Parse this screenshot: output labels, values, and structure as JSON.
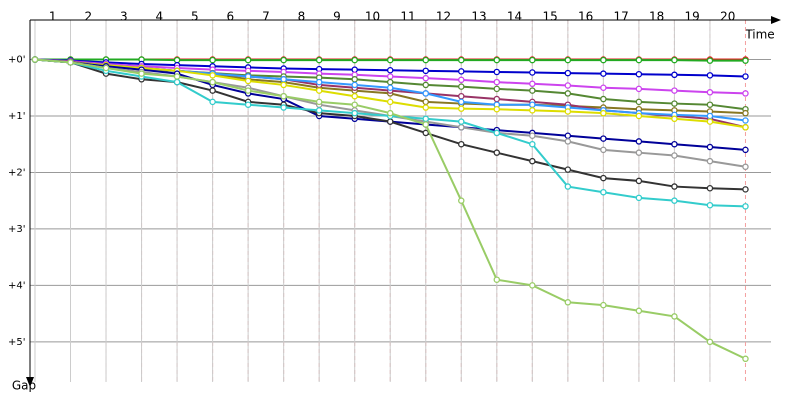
{
  "chart_data": {
    "type": "line",
    "x_label": "Time",
    "y_label": "Gap",
    "x": [
      0,
      1,
      2,
      3,
      4,
      5,
      6,
      7,
      8,
      9,
      10,
      11,
      12,
      13,
      14,
      15,
      16,
      17,
      18,
      19,
      20
    ],
    "xlim": [
      -0.14,
      21
    ],
    "ylim": [
      -0.7,
      5.8
    ],
    "xticks": [
      {
        "value": 0.5,
        "label": "1"
      },
      {
        "value": 1.5,
        "label": "2"
      },
      {
        "value": 2.5,
        "label": "3"
      },
      {
        "value": 3.5,
        "label": "4"
      },
      {
        "value": 4.5,
        "label": "5"
      },
      {
        "value": 5.5,
        "label": "6"
      },
      {
        "value": 6.5,
        "label": "7"
      },
      {
        "value": 7.5,
        "label": "8"
      },
      {
        "value": 8.5,
        "label": "9"
      },
      {
        "value": 9.5,
        "label": "10"
      },
      {
        "value": 10.5,
        "label": "11"
      },
      {
        "value": 11.5,
        "label": "12"
      },
      {
        "value": 12.5,
        "label": "13"
      },
      {
        "value": 13.5,
        "label": "14"
      },
      {
        "value": 14.5,
        "label": "15"
      },
      {
        "value": 15.5,
        "label": "16"
      },
      {
        "value": 16.5,
        "label": "17"
      },
      {
        "value": 17.5,
        "label": "18"
      },
      {
        "value": 18.5,
        "label": "19"
      },
      {
        "value": 19.5,
        "label": "20"
      }
    ],
    "yticks": [
      {
        "value": 0,
        "label": "+0'"
      },
      {
        "value": 1,
        "label": "+1'"
      },
      {
        "value": 2,
        "label": "+2'"
      },
      {
        "value": 3,
        "label": "+3'"
      },
      {
        "value": 4,
        "label": "+4'"
      },
      {
        "value": 5,
        "label": "+5'"
      }
    ],
    "grid": true,
    "series": [
      {
        "color": "#e02020",
        "values": [
          0,
          0,
          0,
          0,
          0,
          0,
          0,
          0,
          0,
          0,
          0,
          0,
          0,
          0,
          0,
          0,
          0,
          0,
          0,
          0,
          0
        ]
      },
      {
        "color": "#22aa22",
        "values": [
          0,
          0,
          0,
          0,
          0.01,
          0.01,
          0.01,
          0.01,
          0.01,
          0.01,
          0.01,
          0.01,
          0.01,
          0.01,
          0.01,
          0.01,
          0.01,
          0.01,
          0.01,
          0.02,
          0.02
        ]
      },
      {
        "color": "#0000cc",
        "values": [
          0,
          0.02,
          0.05,
          0.08,
          0.1,
          0.12,
          0.14,
          0.16,
          0.17,
          0.18,
          0.19,
          0.2,
          0.21,
          0.22,
          0.23,
          0.24,
          0.25,
          0.26,
          0.27,
          0.28,
          0.3
        ]
      },
      {
        "color": "#cc44ee",
        "values": [
          0,
          0.03,
          0.08,
          0.12,
          0.15,
          0.18,
          0.2,
          0.22,
          0.25,
          0.27,
          0.3,
          0.33,
          0.36,
          0.4,
          0.43,
          0.46,
          0.5,
          0.52,
          0.55,
          0.58,
          0.6
        ]
      },
      {
        "color": "#558833",
        "values": [
          0,
          0.05,
          0.12,
          0.18,
          0.2,
          0.24,
          0.28,
          0.3,
          0.32,
          0.35,
          0.4,
          0.45,
          0.48,
          0.52,
          0.55,
          0.6,
          0.7,
          0.75,
          0.78,
          0.8,
          0.88
        ]
      },
      {
        "color": "#887722",
        "values": [
          0,
          0.05,
          0.1,
          0.15,
          0.2,
          0.25,
          0.35,
          0.4,
          0.5,
          0.55,
          0.6,
          0.75,
          0.78,
          0.8,
          0.8,
          0.82,
          0.85,
          0.88,
          0.9,
          0.92,
          0.95
        ]
      },
      {
        "color": "#993366",
        "values": [
          0,
          0.04,
          0.1,
          0.15,
          0.2,
          0.25,
          0.3,
          0.35,
          0.45,
          0.5,
          0.55,
          0.6,
          0.65,
          0.7,
          0.75,
          0.8,
          0.9,
          0.95,
          1.0,
          1.05,
          1.2
        ]
      },
      {
        "color": "#3399ff",
        "values": [
          0,
          0.05,
          0.1,
          0.15,
          0.2,
          0.25,
          0.3,
          0.35,
          0.4,
          0.45,
          0.5,
          0.6,
          0.75,
          0.8,
          0.8,
          0.85,
          0.9,
          0.95,
          0.98,
          1.0,
          1.08
        ]
      },
      {
        "color": "#dddd00",
        "values": [
          0,
          0.05,
          0.1,
          0.15,
          0.2,
          0.28,
          0.38,
          0.45,
          0.55,
          0.65,
          0.75,
          0.85,
          0.87,
          0.88,
          0.9,
          0.92,
          0.95,
          1.0,
          1.05,
          1.1,
          1.2
        ]
      },
      {
        "color": "#000099",
        "values": [
          0,
          0.05,
          0.12,
          0.18,
          0.25,
          0.45,
          0.6,
          0.7,
          1.0,
          1.05,
          1.1,
          1.15,
          1.2,
          1.25,
          1.3,
          1.35,
          1.4,
          1.45,
          1.5,
          1.55,
          1.6
        ]
      },
      {
        "color": "#999999",
        "values": [
          0,
          0.05,
          0.15,
          0.22,
          0.3,
          0.4,
          0.5,
          0.65,
          0.8,
          0.9,
          1.0,
          1.1,
          1.2,
          1.3,
          1.35,
          1.45,
          1.6,
          1.65,
          1.7,
          1.8,
          1.9
        ]
      },
      {
        "color": "#333333",
        "values": [
          0,
          0.05,
          0.25,
          0.35,
          0.4,
          0.55,
          0.75,
          0.8,
          0.95,
          1.0,
          1.1,
          1.3,
          1.5,
          1.65,
          1.8,
          1.95,
          2.1,
          2.15,
          2.25,
          2.28,
          2.3
        ]
      },
      {
        "color": "#33cccc",
        "values": [
          0,
          0.05,
          0.2,
          0.3,
          0.4,
          0.75,
          0.8,
          0.85,
          0.9,
          0.95,
          1.0,
          1.05,
          1.1,
          1.3,
          1.5,
          2.25,
          2.35,
          2.45,
          2.5,
          2.58,
          2.6
        ]
      },
      {
        "color": "#99cc66",
        "values": [
          0,
          0.05,
          0.15,
          0.25,
          0.3,
          0.4,
          0.55,
          0.65,
          0.75,
          0.8,
          0.95,
          1.15,
          2.5,
          3.9,
          4.0,
          4.3,
          4.35,
          4.45,
          4.55,
          5.0,
          5.3
        ]
      }
    ]
  }
}
